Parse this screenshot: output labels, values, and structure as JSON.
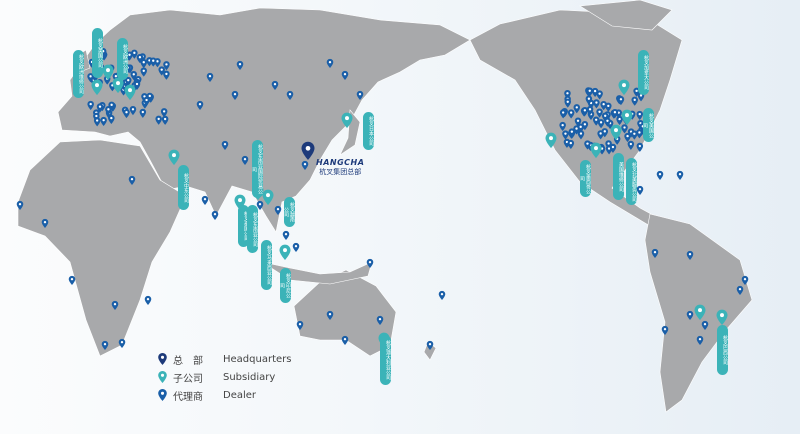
{
  "colors": {
    "headquarters": "#1d3a7a",
    "subsidiary": "#3bb3b8",
    "dealer": "#1a5fa8",
    "land": "#a8a9ab"
  },
  "headquarters": {
    "logo_text": "HANGCHA",
    "name": "杭叉集团总部",
    "icon": "map-pin-icon"
  },
  "subsidiaries": [
    {
      "label": "杭叉欧洲维修公司"
    },
    {
      "label": "杭叉英国公司"
    },
    {
      "label": "杭叉欧洲公司"
    },
    {
      "label": "杭叉中东公司"
    },
    {
      "label": "杭叉东南亚国际贸易公司"
    },
    {
      "label": "杭叉泰国公司"
    },
    {
      "label": "杭叉东南亚公司"
    },
    {
      "label": "杭叉越南公司"
    },
    {
      "label": "杭叉马来西亚公司"
    },
    {
      "label": "杭叉印尼公司"
    },
    {
      "label": "杭叉日本公司"
    },
    {
      "label": "杭叉加拿大公司"
    },
    {
      "label": "杭叉美国公司"
    },
    {
      "label": "杭叉墨西哥公司"
    },
    {
      "label": "美国维修公司"
    },
    {
      "label": "杭叉北美服务公司"
    },
    {
      "label": "杭叉澳大利亚公司"
    },
    {
      "label": "杭叉巴西公司"
    }
  ],
  "legend": [
    {
      "cn": "总　部",
      "en": "Headquarters",
      "type": "headquarters"
    },
    {
      "cn": "子公司",
      "en": "Subsidiary",
      "type": "subsidiary"
    },
    {
      "cn": "代理商",
      "en": "Dealer",
      "type": "dealer"
    }
  ]
}
